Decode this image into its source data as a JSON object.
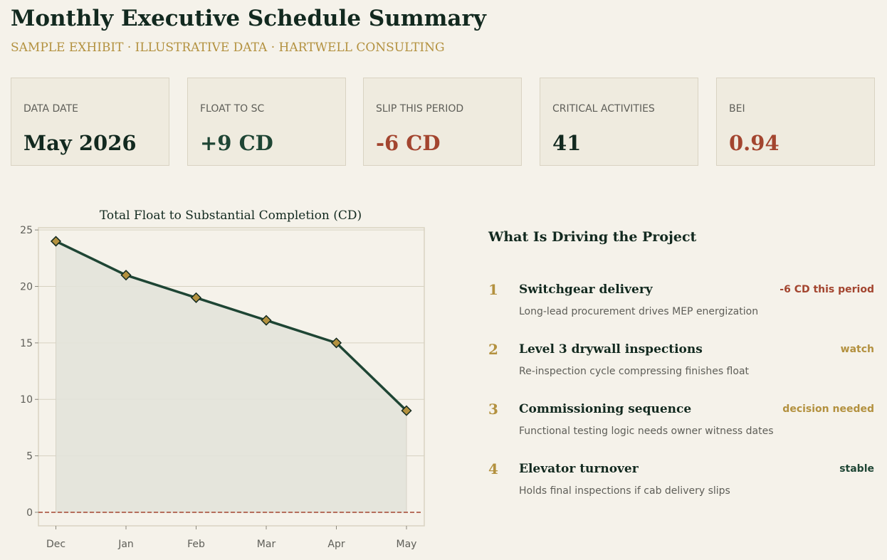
{
  "header": {
    "title": "Monthly Executive Schedule Summary",
    "subtitle": "SAMPLE EXHIBIT  ·  ILLUSTRATIVE DATA  ·  HARTWELL CONSULTING"
  },
  "kpis": [
    {
      "label": "DATA DATE",
      "value": "May 2026",
      "color": "#12291f"
    },
    {
      "label": "FLOAT TO SC",
      "value": "+9 CD",
      "color": "#1e4534"
    },
    {
      "label": "SLIP THIS PERIOD",
      "value": "-6 CD",
      "color": "#a3452f"
    },
    {
      "label": "CRITICAL ACTIVITIES",
      "value": "41",
      "color": "#12291f"
    },
    {
      "label": "BEI",
      "value": "0.94",
      "color": "#a3452f"
    }
  ],
  "chart_data": {
    "type": "line",
    "title": "Total Float to Substantial Completion (CD)",
    "xlabel": "",
    "ylabel": "",
    "categories": [
      "Dec",
      "Jan",
      "Feb",
      "Mar",
      "Apr",
      "May"
    ],
    "series": [
      {
        "values": [
          24,
          21,
          19,
          17,
          15,
          9
        ]
      }
    ],
    "ylim": [
      -1.2,
      25.2
    ],
    "yticks": [
      0,
      5,
      10,
      15,
      20,
      25
    ],
    "reference_line": 0,
    "grid": true,
    "colors": {
      "line": "#1e4534",
      "marker": "#b3913f",
      "fill": "#e3e3da",
      "reference": "#a3452f"
    }
  },
  "drivers": {
    "title": "What Is Driving the Project",
    "items": [
      {
        "num": "1",
        "title": "Switchgear delivery",
        "status": "-6 CD this period",
        "status_color": "#a3452f",
        "desc": "Long-lead procurement drives MEP energization"
      },
      {
        "num": "2",
        "title": "Level 3 drywall inspections",
        "status": "watch",
        "status_color": "#b3913f",
        "desc": "Re-inspection cycle compressing finishes float"
      },
      {
        "num": "3",
        "title": "Commissioning sequence",
        "status": "decision needed",
        "status_color": "#b3913f",
        "desc": "Functional testing logic needs owner witness dates"
      },
      {
        "num": "4",
        "title": "Elevator turnover",
        "status": "stable",
        "status_color": "#1e4534",
        "desc": "Holds final inspections if cab delivery slips"
      }
    ]
  }
}
